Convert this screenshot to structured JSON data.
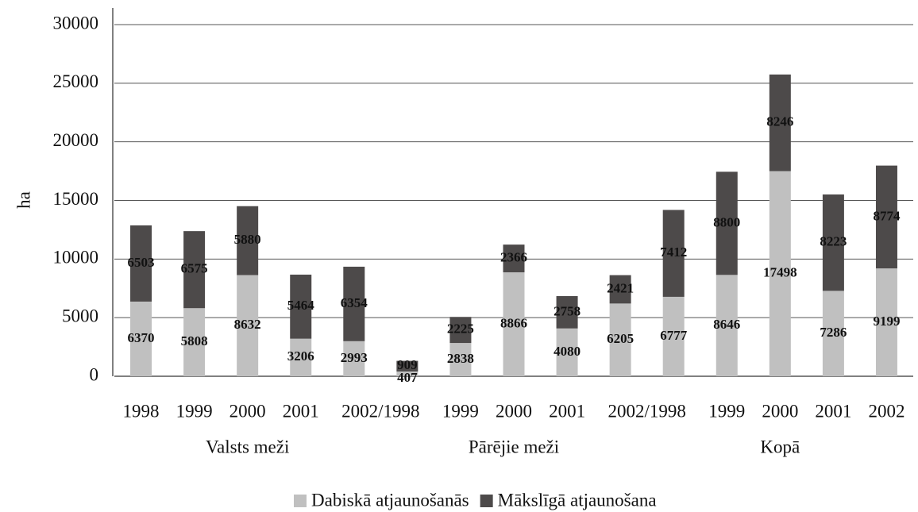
{
  "chart_data": {
    "type": "stacked_bar",
    "y_label": "ha",
    "categories": [
      "1998",
      "1999",
      "2000",
      "2001",
      "2002/1998",
      null,
      "1999",
      "2000",
      "2001",
      "2002/1998",
      null,
      "1999",
      "2000",
      "2001",
      "2002"
    ],
    "groups": [
      "Valsts meži",
      "Pārējie meži",
      "Kopā"
    ],
    "series": [
      {
        "name": "Dabiskā atjaunošanās",
        "color": "#c0c0c0",
        "values": [
          6370,
          5808,
          8632,
          3206,
          2993,
          407,
          2838,
          8866,
          4080,
          6205,
          6777,
          8646,
          17498,
          7286,
          9199
        ]
      },
      {
        "name": "Mākslīgā atjaunošana",
        "color": "#4d4a4a",
        "values": [
          6503,
          6575,
          5880,
          5464,
          6354,
          909,
          2225,
          2366,
          2758,
          2421,
          7412,
          8800,
          8246,
          8223,
          8774
        ]
      }
    ],
    "ylim": [
      0,
      30000
    ],
    "yticks": [
      0,
      5000,
      10000,
      15000,
      20000,
      25000,
      30000
    ],
    "grid": true,
    "legend": "bottom"
  }
}
